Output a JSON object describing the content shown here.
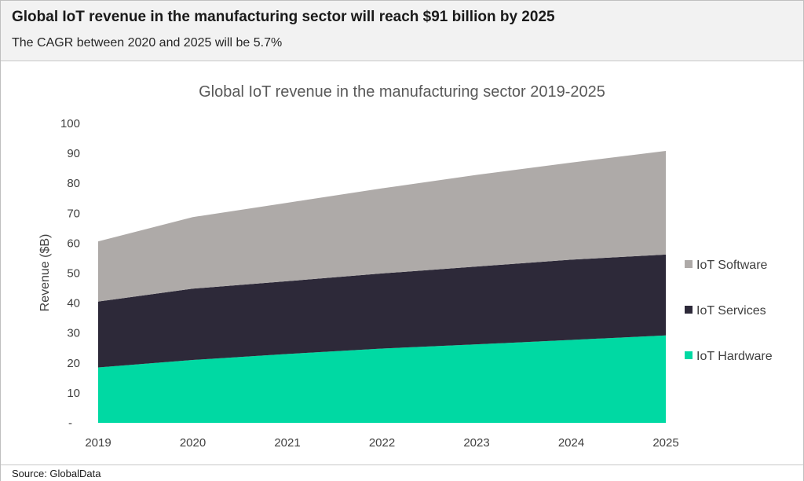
{
  "header": {
    "headline": "Global IoT revenue in the manufacturing sector will reach $91 billion by 2025",
    "subhead": "The CAGR between 2020 and 2025 will be 5.7%"
  },
  "footer": {
    "source": "Source: GlobalData"
  },
  "chart_data": {
    "type": "area",
    "stacked": true,
    "title": "Global IoT revenue in the manufacturing sector 2019-2025",
    "xlabel": "",
    "ylabel": "Revenue ($B)",
    "x": [
      "2019",
      "2020",
      "2021",
      "2022",
      "2023",
      "2024",
      "2025"
    ],
    "ylim": [
      0,
      100
    ],
    "yticks": [
      "-",
      "10",
      "20",
      "30",
      "40",
      "50",
      "60",
      "70",
      "80",
      "90",
      "100"
    ],
    "grid": false,
    "legend_position": "right",
    "series": [
      {
        "name": "IoT Hardware",
        "color": "#00d9a3",
        "values": [
          18.5,
          21.0,
          23.0,
          24.8,
          26.2,
          27.7,
          29.2
        ]
      },
      {
        "name": "IoT Services",
        "color": "#2d2939",
        "values": [
          22.0,
          23.8,
          24.3,
          25.1,
          26.0,
          26.8,
          27.0
        ]
      },
      {
        "name": "IoT Software",
        "color": "#aeaaa8",
        "values": [
          20.1,
          23.9,
          26.2,
          28.4,
          30.6,
          32.4,
          34.6
        ]
      }
    ]
  }
}
